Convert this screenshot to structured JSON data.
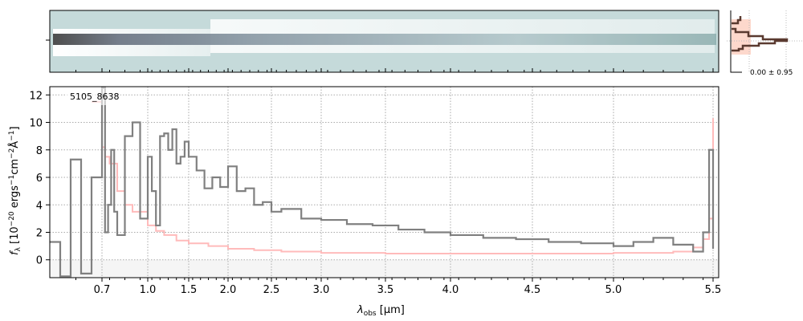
{
  "chart_data": {
    "type": "line",
    "label": "5105_8638",
    "xlabel_main": "λ",
    "xlabel_sub": "obs",
    "xlabel_unit": "[μm]",
    "ylabel": "f_λ [10^-20 ergs^-1 cm^-2 Å^-1]",
    "ylabel_parts": {
      "f": "f",
      "sub": "λ",
      "pre": " [10",
      "e1": "−20",
      "mid1": " ergs",
      "e2": "−1",
      "mid2": "cm",
      "e3": "−2",
      "mid3": "Å",
      "e4": "−1",
      "end": "]"
    },
    "xlim": [
      0.6,
      5.52
    ],
    "ylim": [
      -1.3,
      12.6
    ],
    "x_ticks": [
      0.7,
      1.0,
      1.5,
      2.0,
      2.5,
      3.0,
      3.5,
      4.0,
      4.5,
      5.0,
      5.5
    ],
    "x_tick_labels": [
      "0.7",
      "1.0",
      "1.5",
      "2.0",
      "2.5",
      "3.0",
      "3.5",
      "4.0",
      "4.5",
      "5.0",
      "5.5"
    ],
    "y_ticks": [
      0,
      2,
      4,
      6,
      8,
      10,
      12
    ],
    "y_tick_labels": [
      "0",
      "2",
      "4",
      "6",
      "8",
      "10",
      "12"
    ],
    "grid": true,
    "series": [
      {
        "name": "spectrum",
        "color": "#808080",
        "x": [
          0.6,
          0.62,
          0.64,
          0.66,
          0.68,
          0.7,
          0.72,
          0.74,
          0.76,
          0.78,
          0.8,
          0.85,
          0.9,
          0.95,
          1.0,
          1.05,
          1.1,
          1.15,
          1.2,
          1.25,
          1.3,
          1.35,
          1.4,
          1.45,
          1.5,
          1.6,
          1.7,
          1.8,
          1.9,
          2.0,
          2.1,
          2.2,
          2.3,
          2.4,
          2.5,
          2.6,
          2.8,
          3.0,
          3.2,
          3.4,
          3.6,
          3.8,
          4.0,
          4.2,
          4.4,
          4.6,
          4.8,
          5.0,
          5.1,
          5.2,
          5.3,
          5.4,
          5.45,
          5.48,
          5.5
        ],
        "y": [
          1.3,
          -1.2,
          7.3,
          -1.0,
          6.0,
          12.5,
          2.0,
          4.0,
          8.0,
          3.5,
          1.8,
          9.0,
          10.0,
          3.0,
          7.5,
          5.0,
          2.5,
          9.0,
          9.2,
          8.0,
          9.5,
          7.0,
          7.5,
          8.6,
          7.5,
          6.5,
          5.2,
          6.0,
          5.3,
          6.8,
          5.0,
          5.2,
          4.0,
          4.2,
          3.5,
          3.7,
          3.0,
          2.9,
          2.6,
          2.5,
          2.2,
          2.0,
          1.8,
          1.6,
          1.5,
          1.3,
          1.2,
          1.0,
          1.3,
          1.6,
          1.1,
          0.6,
          2.0,
          8.0,
          0.8
        ]
      },
      {
        "name": "model",
        "color": "#ffbbbb",
        "x": [
          0.68,
          0.7,
          0.72,
          0.75,
          0.8,
          0.85,
          0.9,
          1.0,
          1.1,
          1.2,
          1.35,
          1.5,
          1.75,
          2.0,
          2.3,
          2.6,
          3.0,
          3.5,
          4.0,
          4.5,
          5.0,
          5.3,
          5.4,
          5.45,
          5.48,
          5.5
        ],
        "y": [
          11.5,
          8.2,
          7.5,
          7.0,
          5.0,
          4.0,
          3.5,
          2.5,
          2.1,
          1.8,
          1.4,
          1.2,
          1.0,
          0.8,
          0.7,
          0.6,
          0.5,
          0.45,
          0.45,
          0.45,
          0.5,
          0.6,
          0.9,
          1.5,
          3.0,
          10.3
        ]
      }
    ],
    "histogram": {
      "label": "0.00 ± 0.95"
    }
  }
}
